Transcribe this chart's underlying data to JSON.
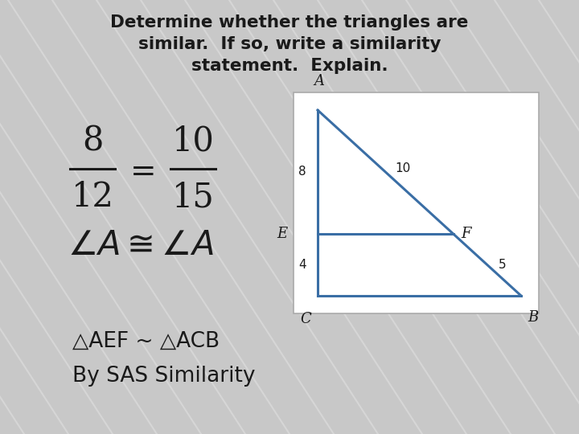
{
  "background_color": "#c8c8c8",
  "title_line1": "Determine whether the triangles are",
  "title_line2": "similar.  If so, write a similarity",
  "title_line3": "statement.  Explain.",
  "title_fontsize": 15.5,
  "fraction1_num": "8",
  "fraction1_den": "12",
  "fraction2_num": "10",
  "fraction2_den": "15",
  "similarity_line": "△AEF ~ △ACB",
  "reason_line": "By SAS Similarity",
  "diagram_box_color": "#ffffff",
  "diagram_line_color": "#3a6ea5",
  "diagram_border_color": "#aaaaaa",
  "label_A": "A",
  "label_C": "C",
  "label_B": "B",
  "label_E": "E",
  "label_F": "F",
  "side_AE": "8",
  "side_AF": "10",
  "side_CE": "4",
  "side_FB": "5",
  "text_color": "#1a1a1a",
  "diag_line_color": "#d8d8d8"
}
